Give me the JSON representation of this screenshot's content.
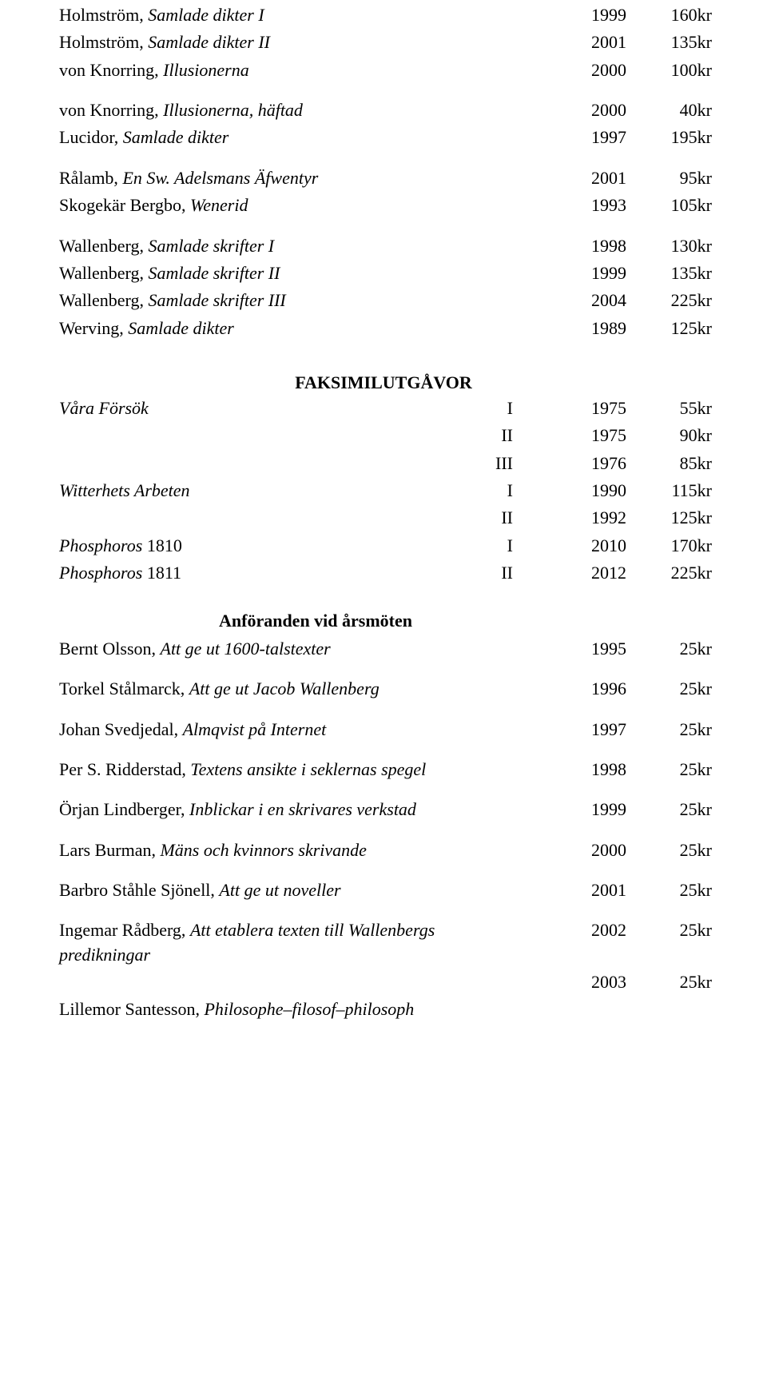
{
  "section1": [
    {
      "title_plain": "Holmström, ",
      "title_italic": "Samlade dikter I",
      "year": "1999",
      "price": "160kr",
      "two_line": true
    },
    {
      "title_plain": "Holmström, ",
      "title_italic": "Samlade dikter II",
      "year": "2001",
      "price": "135kr",
      "two_line": true
    },
    {
      "title_plain": "von Knorring, ",
      "title_italic": "Illusionerna",
      "year": "2000",
      "price": "100kr",
      "two_line": false
    },
    {
      "spacer": true
    },
    {
      "title_plain": "von Knorring, ",
      "title_italic": "Illusionerna, häftad",
      "year": "2000",
      "price": "40kr",
      "two_line": true
    },
    {
      "title_plain": "Lucidor, ",
      "title_italic": "Samlade dikter",
      "year": "1997",
      "price": "195kr",
      "two_line": false
    },
    {
      "spacer": true
    },
    {
      "title_plain": "Rålamb, ",
      "title_italic": "En Sw. Adelsmans Äfwentyr",
      "year": "2001",
      "price": "95kr",
      "two_line": true
    },
    {
      "title_plain": "Skogekär Bergbo, ",
      "title_italic": "Wenerid",
      "year": "1993",
      "price": "105kr",
      "two_line": false
    },
    {
      "spacer": true
    },
    {
      "title_plain": "Wallenberg, ",
      "title_italic": "Samlade skrifter I",
      "year": "1998",
      "price": "130kr",
      "two_line": true
    },
    {
      "title_plain": "Wallenberg, ",
      "title_italic": "Samlade skrifter II",
      "year": "1999",
      "price": "135kr",
      "two_line": true
    },
    {
      "title_plain": "Wallenberg, ",
      "title_italic": "Samlade skrifter III",
      "year": "2004",
      "price": "225kr",
      "two_line": true
    },
    {
      "title_plain": "Werving, ",
      "title_italic": "Samlade dikter",
      "year": "1989",
      "price": "125kr",
      "two_line": false
    }
  ],
  "section2_heading": "FAKSIMILUTGÅVOR",
  "section2": [
    {
      "title_italic": "Våra Försök",
      "vol": "I",
      "year": "1975",
      "price": "55kr"
    },
    {
      "title_italic": "",
      "vol": "II",
      "year": "1975",
      "price": "90kr"
    },
    {
      "title_italic": "",
      "vol": "III",
      "year": "1976",
      "price": "85kr"
    },
    {
      "title_italic": "Witterhets Arbeten",
      "vol": "I",
      "year": "1990",
      "price": "115kr"
    },
    {
      "title_italic": "",
      "vol": "II",
      "year": "1992",
      "price": "125kr"
    },
    {
      "title_plain": "",
      "title_italic": "Phosphoros ",
      "title_tail_plain": "1810",
      "vol": "I",
      "year": "2010",
      "price": "170kr"
    },
    {
      "title_plain": "",
      "title_italic": "Phosphoros ",
      "title_tail_plain": "1811",
      "vol": "II",
      "year": "2012",
      "price": "225kr"
    }
  ],
  "section3_heading": "Anföranden vid årsmöten",
  "section3": [
    {
      "title_plain": "Bernt Olsson, ",
      "title_italic": "Att ge ut 1600-talstexter",
      "year": "1995",
      "price": "25kr",
      "two_line": true
    },
    {
      "spacer": true
    },
    {
      "title_plain": "Torkel Stålmarck, ",
      "title_italic": "Att ge ut Jacob Wallenberg",
      "year": "1996",
      "price": "25kr",
      "two_line": true
    },
    {
      "spacer": true
    },
    {
      "title_plain": "Johan Svedjedal, ",
      "title_italic": "Almqvist på Internet",
      "year": "1997",
      "price": "25kr",
      "two_line": true
    },
    {
      "spacer": true
    },
    {
      "title_plain": "Per S. Ridderstad, ",
      "title_italic": "Textens ansikte i seklernas spegel",
      "year": "1998",
      "price": "25kr",
      "two_line": true
    },
    {
      "spacer": true
    },
    {
      "title_plain": "Örjan Lindberger, ",
      "title_italic": "Inblickar i en skrivares verkstad",
      "year": "1999",
      "price": "25kr",
      "two_line": true
    },
    {
      "spacer": true
    },
    {
      "title_plain": "Lars Burman, ",
      "title_italic": "Mäns och kvinnors skrivande",
      "year": "2000",
      "price": "25kr",
      "two_line": true
    },
    {
      "spacer": true
    },
    {
      "title_plain": "Barbro Ståhle Sjönell, ",
      "title_italic": "Att ge ut noveller",
      "year": "2001",
      "price": "25kr",
      "two_line": true
    },
    {
      "spacer": true
    },
    {
      "title_plain": "Ingemar Rådberg, ",
      "title_italic": "Att etablera texten till Wallenbergs predikningar",
      "year": "2002",
      "price": "25kr",
      "three_line": true
    },
    {
      "title_plain_only": "",
      "year": "2003",
      "price": "25kr",
      "blank_title": true
    },
    {
      "title_plain": "Lillemor Santesson, ",
      "title_italic": "Philosophe–filosof–philosoph",
      "year": "",
      "price": "",
      "two_line": true
    }
  ]
}
